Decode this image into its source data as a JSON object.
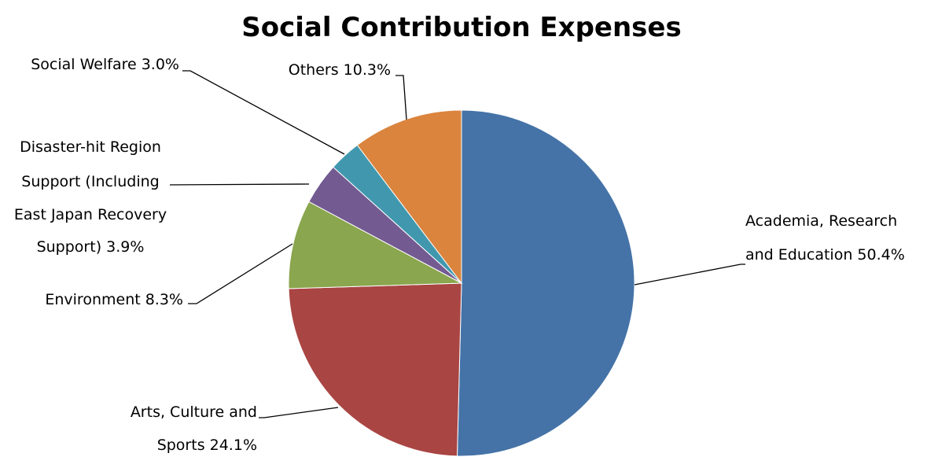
{
  "chart_data": {
    "type": "pie",
    "title": "Social Contribution Expenses",
    "slices": [
      {
        "label_lines": [
          "Academia, Research",
          "and Education 50.4%"
        ],
        "value": 50.4,
        "color": "#4573a7"
      },
      {
        "label_lines": [
          "Arts, Culture and",
          "Sports  24.1%"
        ],
        "value": 24.1,
        "color": "#a94543"
      },
      {
        "label_lines": [
          "Environment  8.3%"
        ],
        "value": 8.3,
        "color": "#8aa64e"
      },
      {
        "label_lines": [
          "Disaster-hit Region",
          "Support (Including",
          "East Japan Recovery",
          "Support) 3.9%"
        ],
        "value": 3.9,
        "color": "#735a91"
      },
      {
        "label_lines": [
          "Social Welfare 3.0%"
        ],
        "value": 3.0,
        "color": "#4198ae"
      },
      {
        "label_lines": [
          "Others 10.3%"
        ],
        "value": 10.3,
        "color": "#da843e"
      }
    ],
    "start_angle": "12 o'clock",
    "direction": "clockwise",
    "legend": "none"
  }
}
